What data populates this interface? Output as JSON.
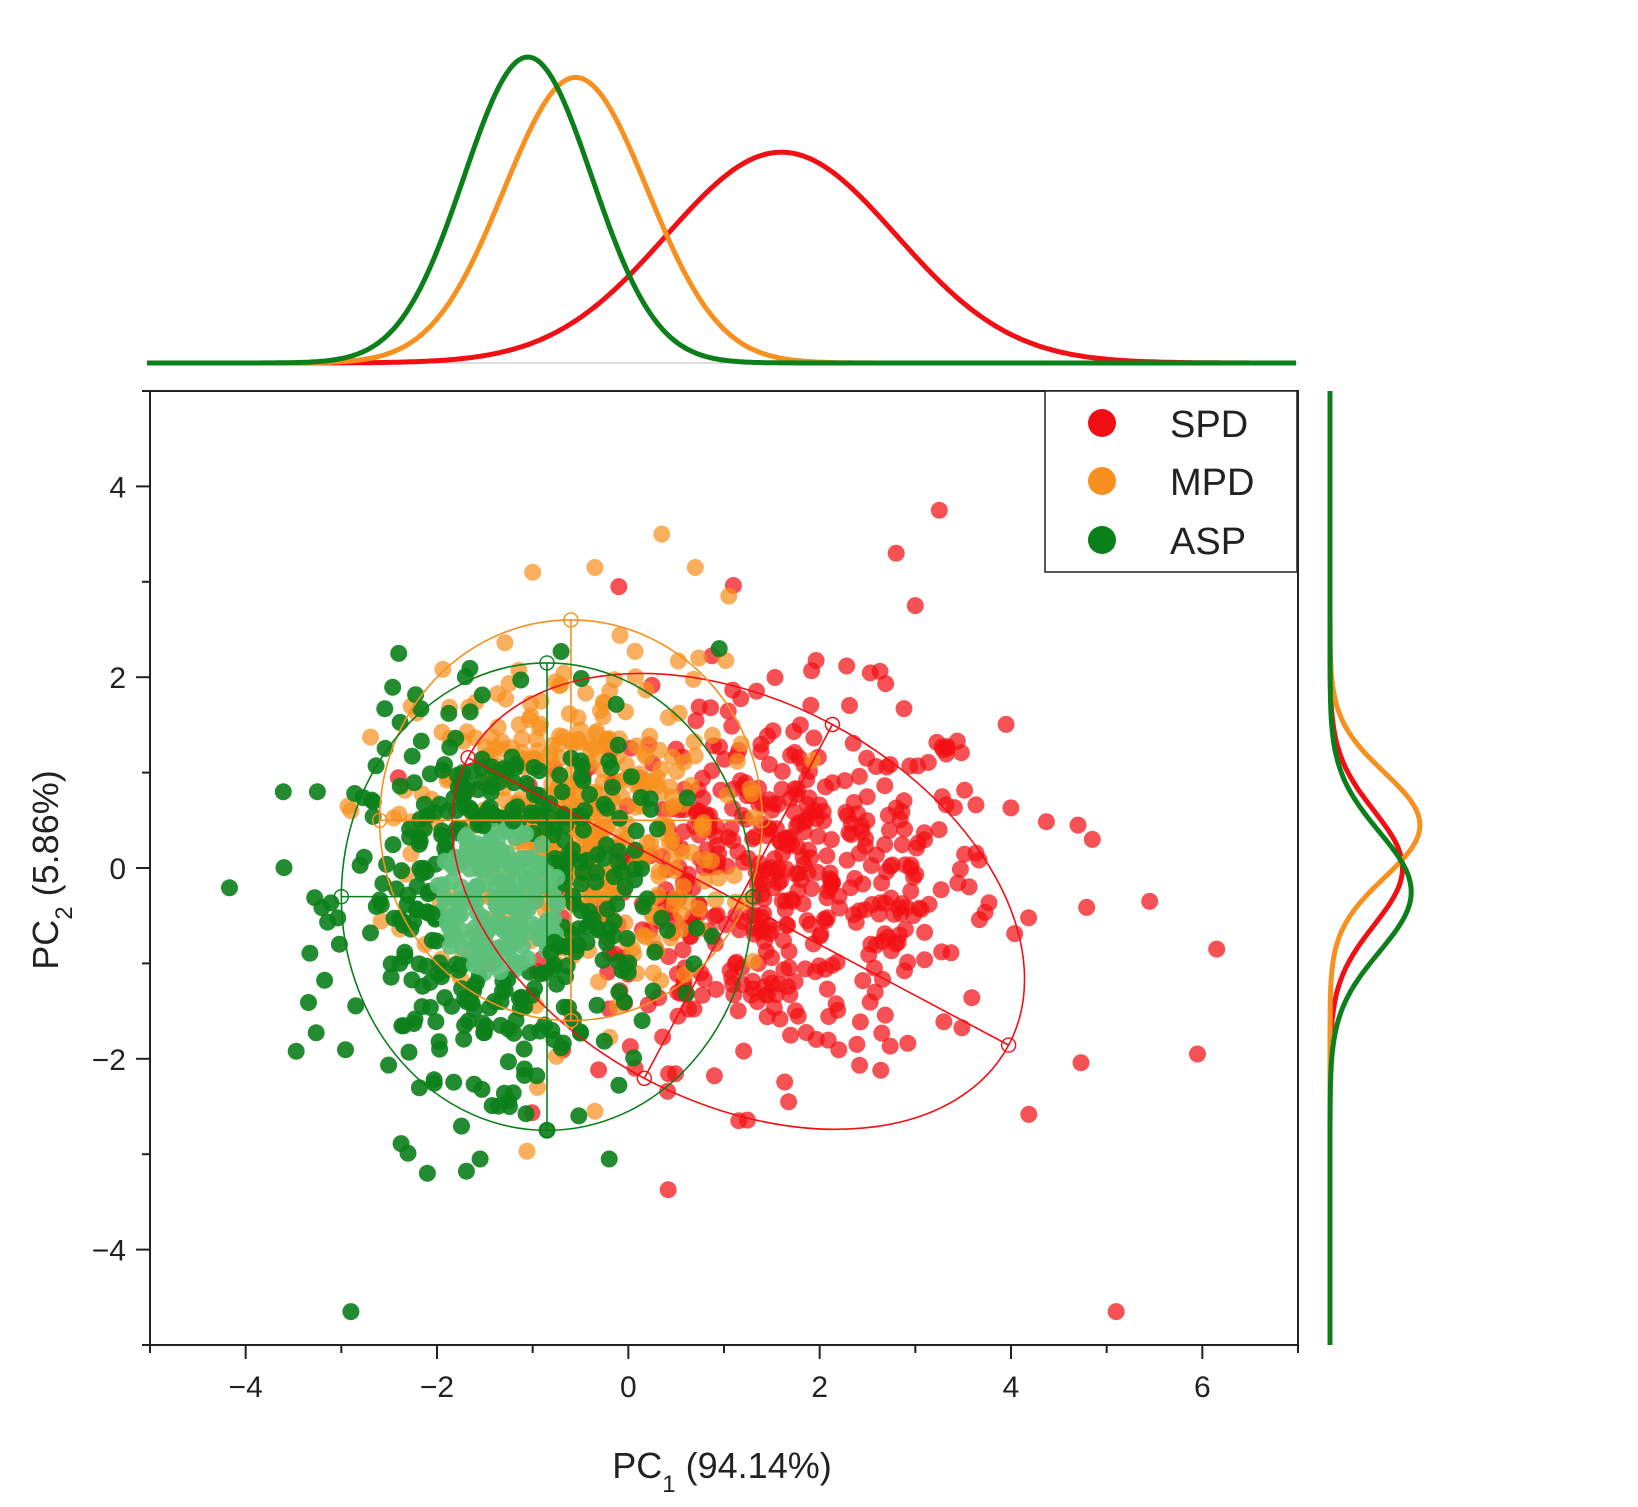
{
  "colors": {
    "SPD": "#f20f14",
    "MPD": "#f7901e",
    "ASP": "#0b7f1a",
    "ASP_core": "#5cbf7a"
  },
  "chart_data": {
    "type": "scatter",
    "title": "",
    "xlabel": {
      "main": "PC",
      "sub": "1",
      "rest": " (94.14%)"
    },
    "ylabel": {
      "main": "PC",
      "sub": "2",
      "rest": " (5.86%)"
    },
    "xlim": [
      -5,
      7
    ],
    "ylim": [
      -5,
      5
    ],
    "xticks": [
      -4,
      -2,
      0,
      2,
      4,
      6
    ],
    "xtick_labels": [
      "−4",
      "−2",
      "0",
      "2",
      "4",
      "6"
    ],
    "yticks": [
      -4,
      -2,
      0,
      2,
      4
    ],
    "ytick_labels": [
      "−4",
      "−2",
      "0",
      "2",
      "4"
    ],
    "legend_position": "top-right",
    "series": [
      {
        "name": "SPD",
        "center": [
          1.6,
          -0.15
        ],
        "spread": [
          1.15,
          0.95
        ],
        "n": 520,
        "outliers": [
          [
            3.25,
            3.75
          ],
          [
            6.15,
            -0.85
          ],
          [
            5.95,
            -1.95
          ],
          [
            5.1,
            -4.65
          ],
          [
            5.45,
            -0.35
          ],
          [
            4.85,
            0.3
          ],
          [
            4.7,
            0.45
          ],
          [
            2.8,
            3.3
          ],
          [
            3.0,
            2.75
          ],
          [
            -0.1,
            2.95
          ]
        ],
        "ellipse": {
          "center": [
            1.15,
            -0.35
          ],
          "semi_axes": [
            3.2,
            2.1
          ],
          "angle_deg": -28
        },
        "density": {
          "mean": 1.6,
          "sd": 1.2,
          "peak": 0.62
        },
        "side_density": {
          "mean": 0.0,
          "sd": 0.6,
          "peak": 0.25
        }
      },
      {
        "name": "MPD",
        "center": [
          -0.6,
          0.45
        ],
        "spread": [
          0.8,
          0.85
        ],
        "n": 420,
        "outliers": [
          [
            0.35,
            3.5
          ],
          [
            0.7,
            3.15
          ],
          [
            -1.0,
            3.1
          ],
          [
            -0.35,
            3.15
          ],
          [
            1.05,
            2.85
          ],
          [
            -2.9,
            0.6
          ],
          [
            -0.35,
            -2.55
          ],
          [
            -0.95,
            -2.3
          ]
        ],
        "ellipse": {
          "center": [
            -0.6,
            0.5
          ],
          "semi_axes": [
            2.0,
            2.1
          ],
          "angle_deg": 0
        },
        "density": {
          "mean": -0.55,
          "sd": 0.75,
          "peak": 0.84
        },
        "side_density": {
          "mean": 0.45,
          "sd": 0.55,
          "peak": 0.31
        }
      },
      {
        "name": "ASP",
        "center": [
          -1.35,
          -0.35
        ],
        "spread": [
          0.75,
          0.9
        ],
        "n": 560,
        "outliers": [
          [
            -2.9,
            -4.65
          ],
          [
            -2.1,
            -3.2
          ],
          [
            -3.25,
            0.8
          ],
          [
            -1.55,
            -3.05
          ],
          [
            -0.2,
            -3.05
          ],
          [
            -0.85,
            -2.75
          ],
          [
            0.95,
            2.3
          ],
          [
            -2.4,
            2.25
          ]
        ],
        "ellipse": {
          "center": [
            -0.85,
            -0.3
          ],
          "semi_axes": [
            2.15,
            2.45
          ],
          "angle_deg": 0
        },
        "density": {
          "mean": -1.05,
          "sd": 0.67,
          "peak": 0.9
        },
        "side_density": {
          "mean": -0.25,
          "sd": 0.63,
          "peak": 0.28
        }
      }
    ]
  }
}
